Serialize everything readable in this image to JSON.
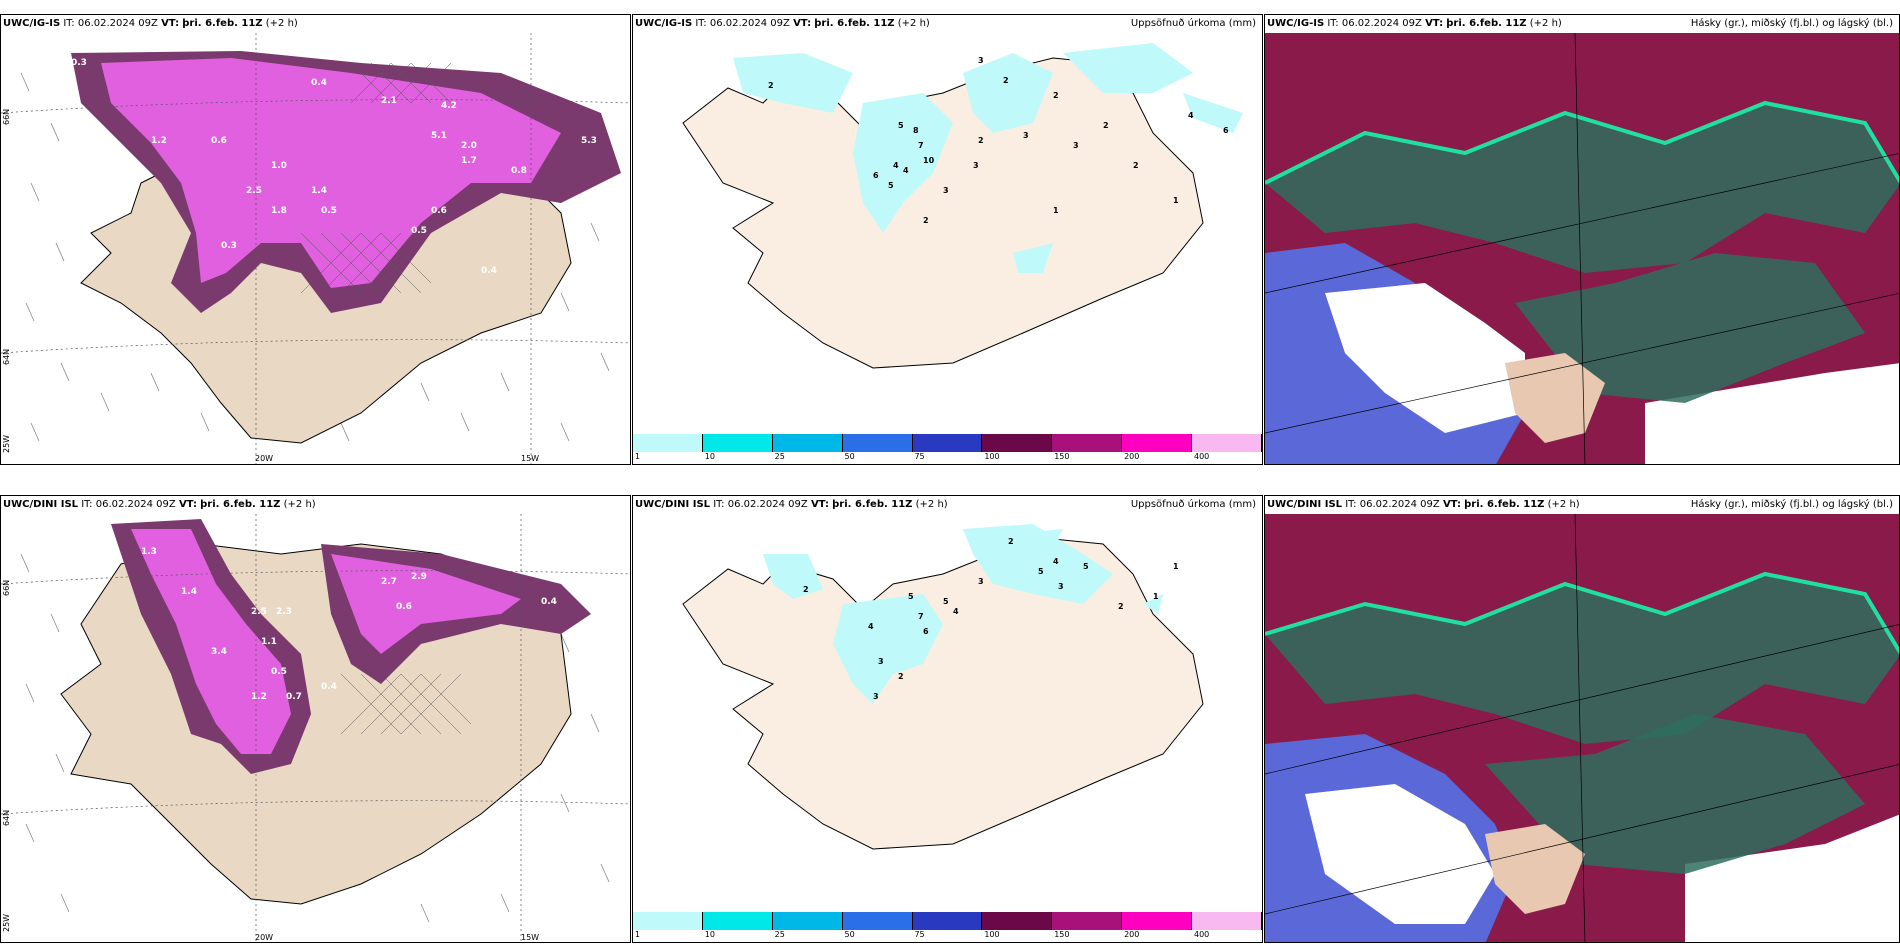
{
  "panels": [
    {
      "model": "UWC/IG-IS",
      "it_label": "IT:",
      "it": "06.02.2024 09Z",
      "vt_label": "VT:",
      "vt": "þri. 6.feb. 11Z",
      "lead": "(+2 h)",
      "right_title": ""
    },
    {
      "model": "UWC/IG-IS",
      "it_label": "IT:",
      "it": "06.02.2024 09Z",
      "vt_label": "VT:",
      "vt": "þri. 6.feb. 11Z",
      "lead": "(+2 h)",
      "right_title": "Uppsöfnuð úrkoma (mm)"
    },
    {
      "model": "UWC/IG-IS",
      "it_label": "IT:",
      "it": "06.02.2024 09Z",
      "vt_label": "VT:",
      "vt": "þri. 6.feb. 11Z",
      "lead": "(+2 h)",
      "right_title": "Hásky (gr.), miðský (fj.bl.) og lágský (bl.)"
    },
    {
      "model": "UWC/DINI ISL",
      "it_label": "IT:",
      "it": "06.02.2024 09Z",
      "vt_label": "VT:",
      "vt": "þri. 6.feb. 11Z",
      "lead": "(+2 h)",
      "right_title": ""
    },
    {
      "model": "UWC/DINI ISL",
      "it_label": "IT:",
      "it": "06.02.2024 09Z",
      "vt_label": "VT:",
      "vt": "þri. 6.feb. 11Z",
      "lead": "(+2 h)",
      "right_title": "Uppsöfnuð úrkoma (mm)"
    },
    {
      "model": "UWC/DINI ISL",
      "it_label": "IT:",
      "it": "06.02.2024 09Z",
      "vt_label": "VT:",
      "vt": "þri. 6.feb. 11Z",
      "lead": "(+2 h)",
      "right_title": "Hásky (gr.), miðský (fj.bl.) og lágský (bl.)"
    }
  ],
  "graticule": {
    "lat_66": "66N",
    "lat_64": "64N",
    "lon_20": "20W",
    "lon_15": "15W",
    "lon_25": "25W"
  },
  "colorbar": {
    "levels": [
      "1",
      "10",
      "25",
      "50",
      "75",
      "100",
      "150",
      "200",
      "400"
    ],
    "colors": [
      "#bff9f9",
      "#00e8e8",
      "#00b8e8",
      "#2a6ee8",
      "#2a3ac0",
      "#6a0848",
      "#a8107a",
      "#ff00c0",
      "#f8b8f0"
    ]
  },
  "snow_labels_top": [
    "0.3",
    "0.4",
    "2.9",
    "1.2",
    "0.6",
    "2.1",
    "2.5",
    "1.8",
    "0.5",
    "1.0",
    "1.4",
    "0.3",
    "5.1",
    "4.2",
    "0.6",
    "0.5",
    "2.0",
    "1.7",
    "0.4",
    "0.8",
    "5.3"
  ],
  "snow_labels_bottom": [
    "1.3",
    "2.5",
    "2.3",
    "3.4",
    "0.5",
    "1.2",
    "0.7",
    "2.7",
    "2.9",
    "0.6",
    "0.4",
    "1.1",
    "1.4",
    "0.4"
  ],
  "precip_labels_top": [
    "3",
    "2",
    "2",
    "5",
    "7",
    "8",
    "10",
    "4",
    "3",
    "6",
    "5",
    "4",
    "2",
    "3",
    "2",
    "3",
    "2",
    "2",
    "1",
    "2",
    "1",
    "4",
    "6",
    "3"
  ],
  "precip_labels_bottom": [
    "2",
    "3",
    "5",
    "4",
    "3",
    "7",
    "5",
    "4",
    "6",
    "3",
    "2",
    "2",
    "2",
    "1",
    "5",
    "5",
    "4",
    "3",
    "1"
  ]
}
